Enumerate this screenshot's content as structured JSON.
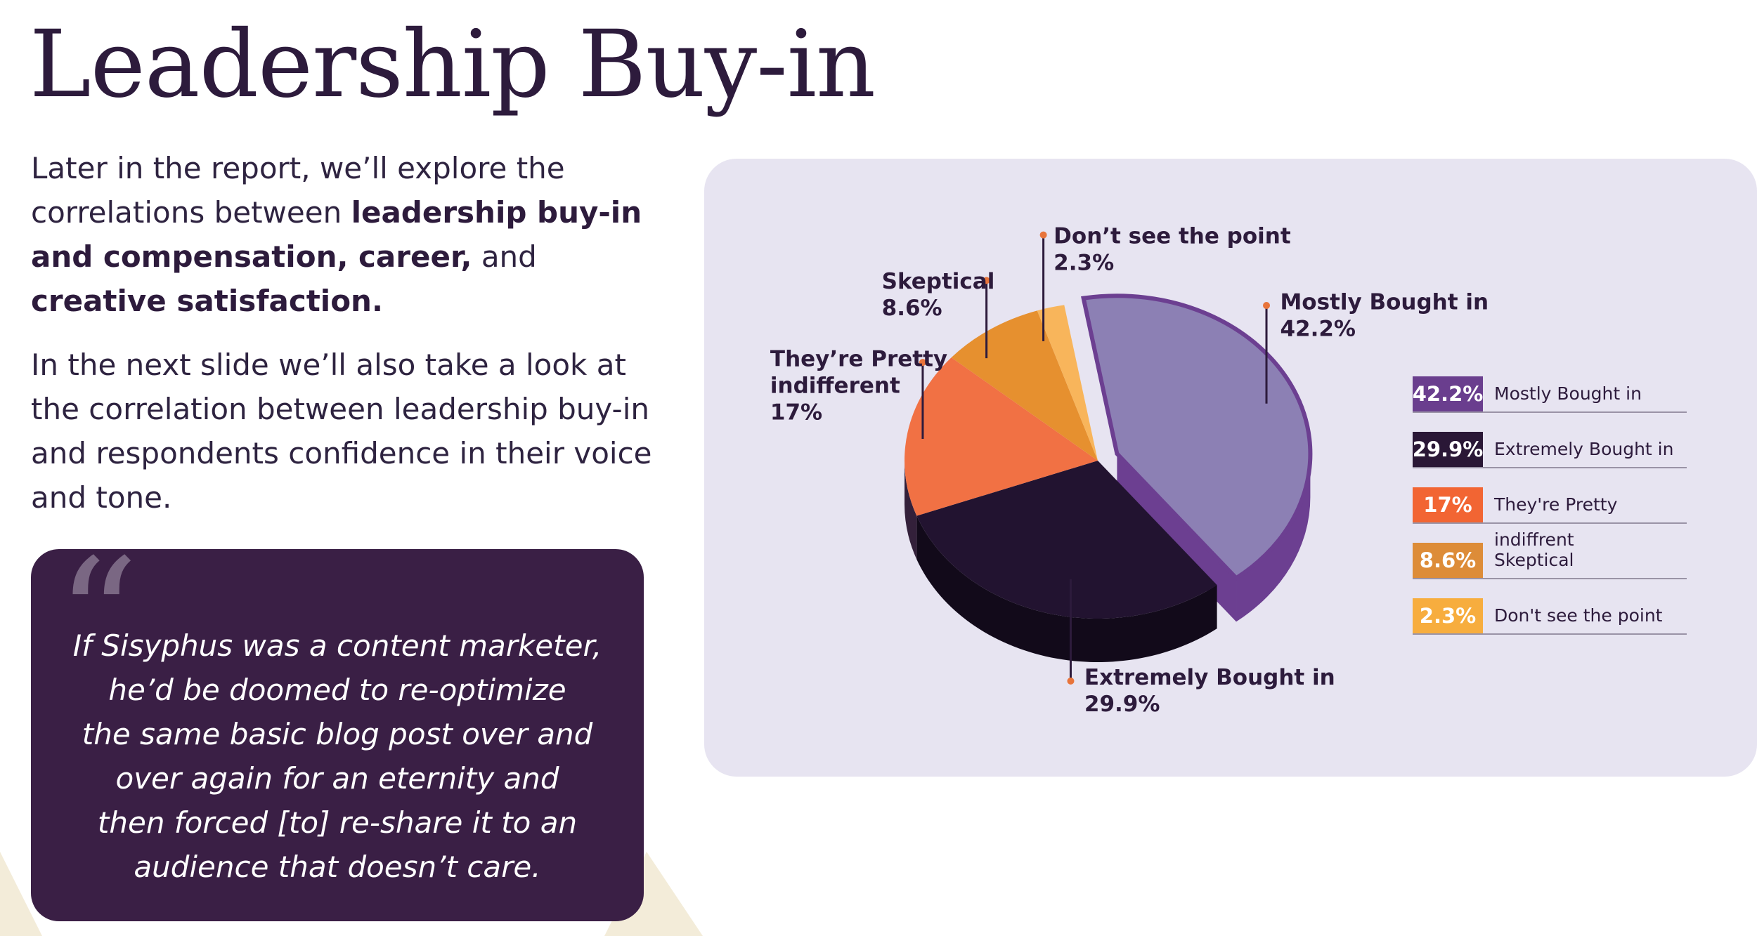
{
  "title": "Leadership Buy-in",
  "intro": {
    "p1_start": "Later in the report, we’ll explore the correlations between ",
    "p1_bold1": "leadership buy-in and compensation, career,",
    "p1_mid": " and ",
    "p1_bold2": "creative satisfaction.",
    "p2": "In the next slide we’ll also take a look at the correlation between leadership buy-in and respondents confidence in their voice and tone."
  },
  "quote": {
    "mark": "“",
    "text": "If Sisyphus was a content marketer,\nhe’d be doomed to re-optimize\nthe same basic blog post over and\nover again for an eternity  and\nthen forced [to] re-share it to an\naudience that doesn’t care."
  },
  "chart_data": {
    "type": "pie",
    "title": "",
    "unit": "%",
    "slices": [
      {
        "label": "Mostly Bought in",
        "value": 42.2,
        "display": "42.2%",
        "color": "#8c80b4",
        "side": "#6c3f91",
        "callout": [
          "Mostly Bought in",
          "42.2%"
        ]
      },
      {
        "label": "Extremely Bought in",
        "value": 29.9,
        "display": "29.9%",
        "color": "#221330",
        "side": "#120a1a",
        "callout": [
          "Extremely Bought in",
          "29.9%"
        ]
      },
      {
        "label": "They're Pretty indiffrent",
        "value": 17,
        "display": "17%",
        "color": "#f17144",
        "side": "#33203a",
        "callout": [
          "They’re Pretty",
          "indifferent",
          "17%"
        ]
      },
      {
        "label": "Skeptical",
        "value": 8.6,
        "display": "8.6%",
        "color": "#e6902f",
        "side": "#b56b20",
        "callout": [
          "Skeptical",
          "8.6%"
        ]
      },
      {
        "label": "Don't see the point",
        "value": 2.3,
        "display": "2.3%",
        "color": "#f8b55b",
        "side": "#c88a3a",
        "callout": [
          "Don’t see the point",
          "2.3%"
        ]
      }
    ],
    "legend": [
      {
        "value": "42.2%",
        "label": "Mostly Bought in",
        "color": "#6a3e8e"
      },
      {
        "value": "29.9%",
        "label": "Extremely Bought in",
        "color": "#2a1736"
      },
      {
        "value": "17%",
        "label": "They're Pretty indiffrent",
        "color": "#f26533"
      },
      {
        "value": "8.6%",
        "label": "Skeptical",
        "color": "#dd8c38"
      },
      {
        "value": "2.3%",
        "label": "Don't see the point",
        "color": "#f7ad3e"
      }
    ],
    "exploded_slice": "Mostly Bought in",
    "legend_position": "right",
    "callout_marker_color": "#e8743b"
  }
}
